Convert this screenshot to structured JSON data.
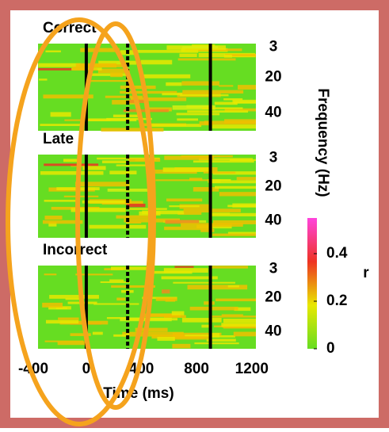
{
  "chart_data": {
    "type": "heatmap",
    "panels": [
      {
        "title": "Correct"
      },
      {
        "title": "Late"
      },
      {
        "title": "Incorrect"
      }
    ],
    "xlabel": "Time (ms)",
    "ylabel": "Frequency (Hz)",
    "xlim": [
      -350,
      1230
    ],
    "xticks": [
      -400,
      0,
      400,
      800,
      1200
    ],
    "ylim": [
      1,
      50
    ],
    "yticks": [
      3,
      20,
      40
    ],
    "event_lines": [
      {
        "value": 0,
        "style": "solid"
      },
      {
        "value": 300,
        "style": "dashed"
      },
      {
        "value": 900,
        "style": "solid"
      }
    ],
    "colorbar": {
      "label": "r",
      "clim": [
        0,
        0.55
      ],
      "ticks": [
        0,
        0.2,
        0.4
      ],
      "colors": [
        "#66dd22",
        "#e8e800",
        "#ee3322",
        "#ff44dd"
      ]
    }
  }
}
